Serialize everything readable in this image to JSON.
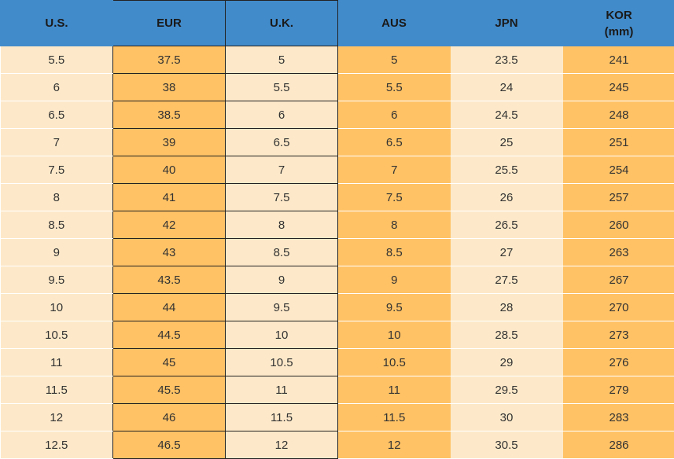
{
  "table": {
    "header": [
      "U.S.",
      "EUR",
      "U.K.",
      "AUS",
      "JPN",
      "KOR\n(mm)"
    ],
    "rows": [
      [
        5.5,
        37.5,
        5,
        5,
        23.5,
        241
      ],
      [
        6,
        38,
        5.5,
        5.5,
        24,
        245
      ],
      [
        6.5,
        38.5,
        6,
        6,
        24.5,
        248
      ],
      [
        7,
        39,
        6.5,
        6.5,
        25,
        251
      ],
      [
        7.5,
        40,
        7,
        7,
        25.5,
        254
      ],
      [
        8,
        41,
        7.5,
        7.5,
        26,
        257
      ],
      [
        8.5,
        42,
        8,
        8,
        26.5,
        260
      ],
      [
        9,
        43,
        8.5,
        8.5,
        27,
        263
      ],
      [
        9.5,
        43.5,
        9,
        9,
        27.5,
        267
      ],
      [
        10,
        44,
        9.5,
        9.5,
        28,
        270
      ],
      [
        10.5,
        44.5,
        10,
        10,
        28.5,
        273
      ],
      [
        11,
        45,
        10.5,
        10.5,
        29,
        276
      ],
      [
        11.5,
        45.5,
        11,
        11,
        29.5,
        279
      ],
      [
        12,
        46,
        11.5,
        11.5,
        30,
        283
      ],
      [
        12.5,
        46.5,
        12,
        12,
        30.5,
        286
      ]
    ]
  }
}
